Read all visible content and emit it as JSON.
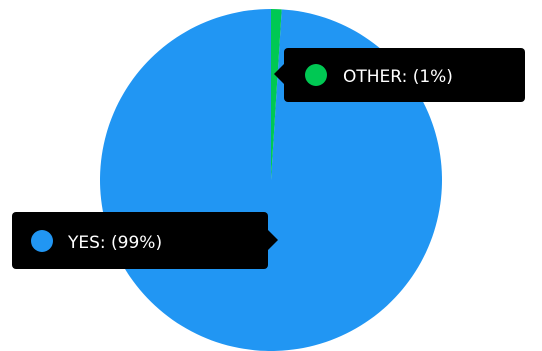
{
  "chart_data": {
    "type": "pie",
    "slices": [
      {
        "label": "YES",
        "value": 99,
        "color": "#2196f3",
        "display": "YES: (99%)"
      },
      {
        "label": "OTHER",
        "value": 1,
        "color": "#00c853",
        "display": "OTHER: (1%)"
      }
    ],
    "legend": "tooltips",
    "tooltip_color": "#000000"
  }
}
